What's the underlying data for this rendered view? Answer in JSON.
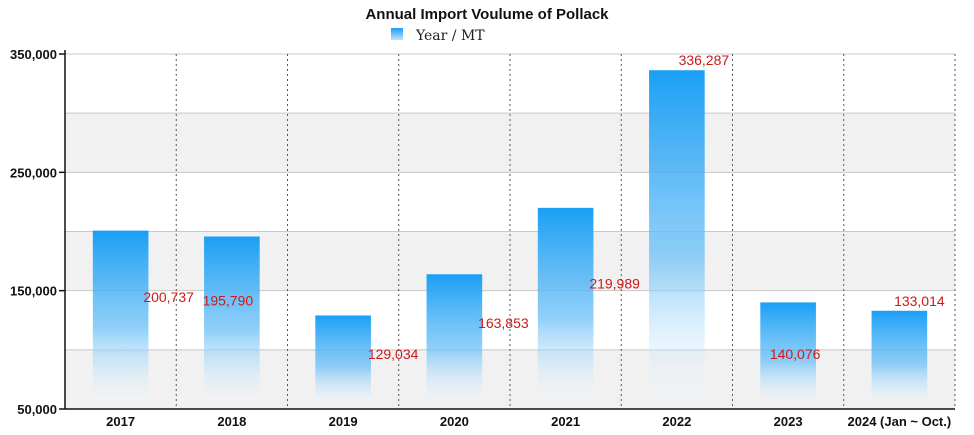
{
  "chart_data": {
    "type": "bar",
    "title": "Annual Import Voulume of Pollack",
    "xlabel": "",
    "ylabel": "",
    "legend": {
      "label": "Year / MT",
      "position": "top-center"
    },
    "categories": [
      "2017",
      "2018",
      "2019",
      "2020",
      "2021",
      "2022",
      "2023",
      "2024  (Jan ~ Oct.)"
    ],
    "series": [
      {
        "name": "Year / MT",
        "values": [
          200737,
          195790,
          129034,
          163853,
          219989,
          336287,
          140076,
          133014
        ]
      }
    ],
    "data_labels": [
      "200,737",
      "195,790",
      "129,034",
      "163,853",
      "219,989",
      "336,287",
      "140,076",
      "133,014"
    ],
    "ylim": [
      50000,
      350000
    ],
    "yticks": [
      50000,
      150000,
      250000,
      350000
    ],
    "ytick_labels": [
      "50,000",
      "150,000",
      "250,000",
      "350,000"
    ],
    "grid": true,
    "bar_color": "#1a9ff5"
  }
}
